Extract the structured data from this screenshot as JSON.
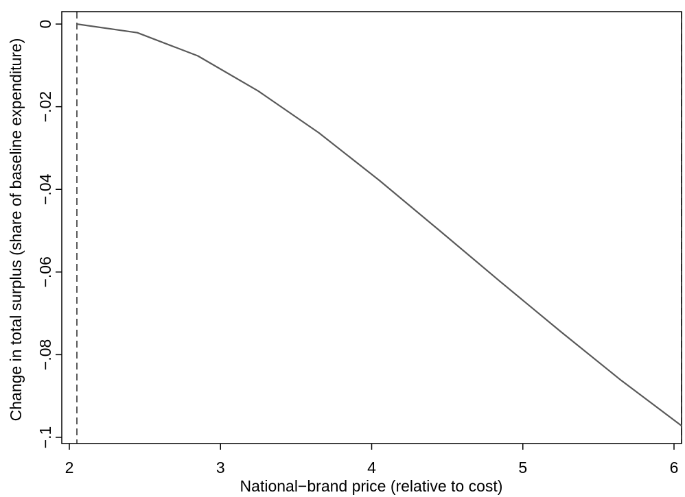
{
  "chart_data": {
    "type": "line",
    "title": "",
    "xlabel": "National−brand price (relative to cost)",
    "ylabel": "Change in total surplus (share of baseline expenditure)",
    "xlim": [
      1.95,
      6.05
    ],
    "ylim": [
      -0.1015,
      0.003
    ],
    "xticks": [
      2,
      3,
      4,
      5,
      6
    ],
    "xtick_labels": [
      "2",
      "3",
      "4",
      "5",
      "6"
    ],
    "yticks": [
      0,
      -0.02,
      -0.04,
      -0.06,
      -0.08,
      -0.1
    ],
    "ytick_labels": [
      "0",
      "−.02",
      "−.04",
      "−.06",
      "−.08",
      "−.1"
    ],
    "grid": false,
    "series": [
      {
        "x": [
          2.05,
          2.45,
          2.85,
          3.25,
          3.65,
          4.05,
          4.45,
          4.85,
          5.25,
          5.65,
          6.05
        ],
        "y": [
          0,
          -0.0021,
          -0.0077,
          -0.0162,
          -0.0263,
          -0.0378,
          -0.05,
          -0.0623,
          -0.0744,
          -0.0862,
          -0.0972
        ]
      }
    ],
    "reference_lines": [
      {
        "axis": "x",
        "value": 2.05,
        "style": "dashed"
      },
      {
        "axis": "x",
        "value": 6.05,
        "style": "dashed"
      }
    ],
    "colors": {
      "line": "#595959",
      "axis": "#000000",
      "reference": "#000000"
    }
  }
}
